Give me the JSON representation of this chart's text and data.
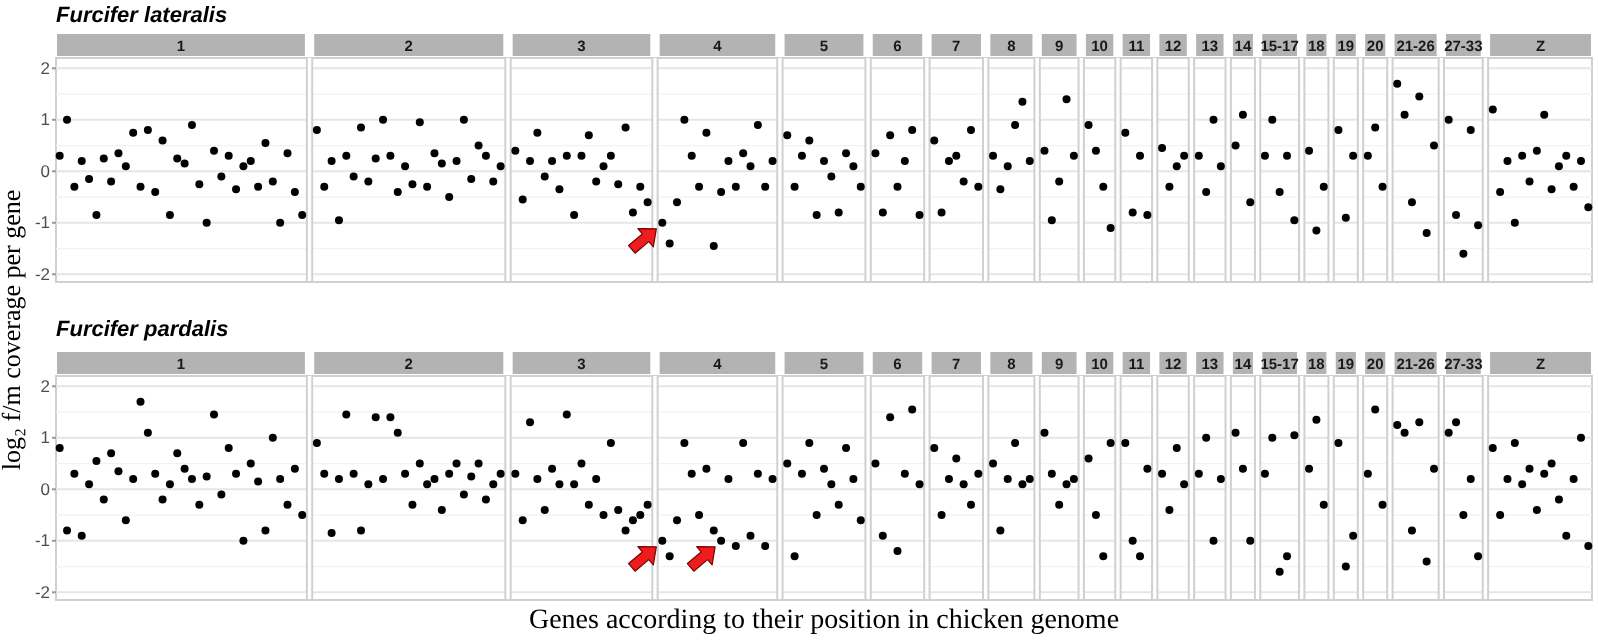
{
  "chart_data": [
    {
      "type": "scatter",
      "title": "Furcifer lateralis",
      "ylabel": "log₂ f/m coverage per gene",
      "ylim": [
        -2.15,
        2.2
      ],
      "yticks": [
        -2,
        -1,
        0,
        1,
        2
      ],
      "tick_labels": "y",
      "grid": "y",
      "marker": "circle",
      "color": "#000000",
      "annotations": [
        "1",
        "2",
        "3",
        "4",
        "5",
        "6",
        "7",
        "8",
        "9",
        "10",
        "11",
        "12",
        "13",
        "14",
        "15-17",
        "18",
        "19",
        "20",
        "21-26",
        "27-33",
        "Z"
      ],
      "categories": [
        null,
        null,
        null,
        null,
        null,
        null,
        null,
        null,
        null,
        null,
        null,
        null,
        null,
        null,
        null,
        null,
        null,
        null,
        null,
        null,
        null,
        null,
        null,
        null,
        null,
        null,
        null,
        null,
        null,
        null,
        null,
        null,
        null,
        null,
        null,
        null,
        null,
        null,
        null,
        null,
        null,
        null,
        null,
        null,
        null,
        null,
        null,
        null,
        null,
        null,
        null,
        null,
        null,
        null,
        null,
        null,
        null,
        null,
        null,
        null,
        null,
        null,
        null,
        null,
        null,
        null,
        null,
        null,
        null,
        null,
        null,
        null,
        null,
        null,
        null,
        null,
        null,
        null,
        null,
        null,
        null,
        null,
        null,
        null,
        null,
        null,
        null,
        null,
        null,
        null,
        null,
        null,
        null,
        null,
        null,
        null,
        null,
        null,
        null,
        null,
        null,
        null,
        null,
        null,
        null,
        null,
        null,
        null,
        null,
        null,
        null,
        null,
        null,
        null,
        null,
        null,
        null,
        null,
        null,
        null,
        null,
        null,
        null,
        null,
        null,
        null,
        null,
        null,
        null,
        null,
        null,
        null,
        null,
        null,
        null,
        null,
        null,
        null,
        null,
        null,
        null,
        null,
        null,
        null,
        null,
        null,
        null,
        null,
        null,
        null,
        null,
        null,
        null,
        null,
        null,
        null,
        null,
        null,
        null,
        null,
        null,
        null,
        null,
        null,
        null,
        null,
        null,
        null,
        null,
        null,
        null,
        null,
        null,
        null,
        null,
        null,
        null,
        null,
        null,
        null,
        null,
        null,
        null,
        null,
        null,
        null,
        null,
        null,
        null,
        null,
        null,
        null,
        null,
        null,
        null,
        null,
        null,
        null,
        null,
        null,
        null,
        null,
        null,
        null,
        null,
        null,
        null,
        null,
        null
      ],
      "values": [
        0.3,
        1.0,
        -0.3,
        0.2,
        -0.15,
        -0.85,
        0.25,
        -0.2,
        0.35,
        0.1,
        0.75,
        -0.3,
        0.8,
        -0.4,
        0.6,
        -0.85,
        0.25,
        0.15,
        0.9,
        -0.25,
        -1.0,
        0.4,
        -0.1,
        0.3,
        -0.35,
        0.1,
        0.2,
        -0.3,
        0.55,
        -0.2,
        -1.0,
        0.35,
        -0.4,
        -0.85,
        null,
        0.8,
        -0.3,
        0.2,
        -0.95,
        0.3,
        -0.1,
        0.85,
        -0.2,
        0.25,
        1.0,
        0.3,
        -0.4,
        0.1,
        -0.25,
        0.95,
        -0.3,
        0.35,
        0.15,
        -0.5,
        0.2,
        1.0,
        -0.15,
        0.5,
        0.3,
        -0.2,
        0.1,
        null,
        0.4,
        -0.55,
        0.2,
        0.75,
        -0.1,
        0.2,
        -0.35,
        0.3,
        -0.85,
        0.3,
        0.7,
        -0.2,
        0.1,
        0.3,
        -0.25,
        0.85,
        -0.8,
        -0.3,
        -0.6,
        null,
        -1.0,
        -1.4,
        -0.6,
        1.0,
        0.3,
        -0.3,
        0.75,
        -1.45,
        -0.4,
        0.2,
        -0.3,
        0.35,
        0.1,
        0.9,
        -0.3,
        0.2,
        null,
        0.7,
        -0.3,
        0.3,
        0.6,
        -0.85,
        0.2,
        -0.1,
        -0.8,
        0.35,
        0.1,
        -0.3,
        null,
        0.35,
        -0.8,
        0.7,
        -0.3,
        0.2,
        0.8,
        -0.85,
        null,
        0.6,
        -0.8,
        0.2,
        0.3,
        -0.2,
        0.8,
        -0.3,
        null,
        0.3,
        -0.35,
        0.1,
        0.9,
        1.35,
        0.2,
        null,
        0.4,
        -0.95,
        -0.2,
        1.4,
        0.3,
        null,
        0.9,
        0.4,
        -0.3,
        -1.1,
        null,
        0.75,
        -0.8,
        0.3,
        -0.85,
        null,
        0.45,
        -0.3,
        0.1,
        0.3,
        null,
        0.3,
        -0.4,
        1.0,
        0.1,
        null,
        0.5,
        1.1,
        -0.6,
        null,
        0.3,
        1.0,
        -0.4,
        0.3,
        -0.95,
        null,
        0.4,
        -1.15,
        -0.3,
        null,
        0.8,
        -0.9,
        0.3,
        null,
        0.3,
        0.85,
        -0.3,
        null,
        1.7,
        1.1,
        -0.6,
        1.45,
        -1.2,
        0.5,
        null,
        1.0,
        -0.85,
        -1.6,
        0.8,
        -1.05,
        null,
        1.2,
        -0.4,
        0.2,
        -1.0,
        0.3,
        -0.2,
        0.4,
        1.1,
        -0.35,
        0.1,
        0.3,
        -0.3,
        0.2,
        -0.7
      ]
    },
    {
      "type": "scatter",
      "title": "Furcifer pardalis",
      "xlabel": "Genes according to their position in chicken genome",
      "ylim": [
        -2.15,
        2.2
      ],
      "yticks": [
        -2,
        -1,
        0,
        1,
        2
      ],
      "tick_labels": "y",
      "grid": "y",
      "marker": "circle",
      "color": "#000000",
      "annotations": [
        "1",
        "2",
        "3",
        "4",
        "5",
        "6",
        "7",
        "8",
        "9",
        "10",
        "11",
        "12",
        "13",
        "14",
        "15-17",
        "18",
        "19",
        "20",
        "21-26",
        "27-33",
        "Z"
      ],
      "categories": [
        null,
        null,
        null,
        null,
        null,
        null,
        null,
        null,
        null,
        null,
        null,
        null,
        null,
        null,
        null,
        null,
        null,
        null,
        null,
        null,
        null,
        null,
        null,
        null,
        null,
        null,
        null,
        null,
        null,
        null,
        null,
        null,
        null,
        null,
        null,
        null,
        null,
        null,
        null,
        null,
        null,
        null,
        null,
        null,
        null,
        null,
        null,
        null,
        null,
        null,
        null,
        null,
        null,
        null,
        null,
        null,
        null,
        null,
        null,
        null,
        null,
        null,
        null,
        null,
        null,
        null,
        null,
        null,
        null,
        null,
        null,
        null,
        null,
        null,
        null,
        null,
        null,
        null,
        null,
        null,
        null,
        null,
        null,
        null,
        null,
        null,
        null,
        null,
        null,
        null,
        null,
        null,
        null,
        null,
        null,
        null,
        null,
        null,
        null,
        null,
        null,
        null,
        null,
        null,
        null,
        null,
        null,
        null,
        null,
        null,
        null,
        null,
        null,
        null,
        null,
        null,
        null,
        null,
        null,
        null,
        null,
        null,
        null,
        null,
        null,
        null,
        null,
        null,
        null,
        null,
        null,
        null,
        null,
        null,
        null,
        null,
        null,
        null,
        null,
        null,
        null,
        null,
        null,
        null,
        null,
        null,
        null,
        null,
        null,
        null,
        null,
        null,
        null,
        null,
        null,
        null,
        null,
        null,
        null,
        null,
        null,
        null,
        null,
        null,
        null,
        null,
        null,
        null,
        null,
        null,
        null,
        null,
        null,
        null,
        null,
        null,
        null,
        null,
        null,
        null,
        null,
        null,
        null,
        null,
        null,
        null,
        null,
        null,
        null,
        null,
        null,
        null,
        null,
        null,
        null,
        null,
        null,
        null,
        null,
        null,
        null,
        null,
        null,
        null,
        null,
        null,
        null,
        null,
        null
      ],
      "values": [
        0.8,
        -0.8,
        0.3,
        -0.9,
        0.1,
        0.55,
        -0.2,
        0.7,
        0.35,
        -0.6,
        0.2,
        1.7,
        1.1,
        0.3,
        -0.2,
        0.1,
        0.7,
        0.4,
        0.2,
        -0.3,
        0.25,
        1.45,
        -0.1,
        0.8,
        0.3,
        -1.0,
        0.5,
        0.15,
        -0.8,
        1.0,
        0.2,
        -0.3,
        0.4,
        -0.5,
        null,
        0.9,
        0.3,
        -0.85,
        0.2,
        1.45,
        0.3,
        -0.8,
        0.1,
        1.4,
        0.2,
        1.4,
        1.1,
        0.3,
        -0.3,
        0.5,
        0.1,
        0.2,
        -0.4,
        0.3,
        0.5,
        -0.1,
        0.25,
        0.5,
        -0.2,
        0.1,
        0.3,
        null,
        0.3,
        -0.6,
        1.3,
        0.2,
        -0.4,
        0.4,
        0.1,
        1.45,
        0.1,
        0.5,
        -0.3,
        0.2,
        -0.5,
        0.9,
        -0.4,
        -0.8,
        -0.6,
        -0.5,
        -0.3,
        null,
        -1.0,
        -1.3,
        -0.6,
        0.9,
        0.3,
        -0.5,
        0.4,
        -0.8,
        -1.0,
        0.2,
        -1.1,
        0.9,
        -0.9,
        0.3,
        -1.1,
        0.2,
        null,
        0.5,
        -1.3,
        0.3,
        0.9,
        -0.5,
        0.4,
        0.1,
        -0.3,
        0.8,
        0.2,
        -0.6,
        null,
        0.5,
        -0.9,
        1.4,
        -1.2,
        0.3,
        1.55,
        0.1,
        null,
        0.8,
        -0.5,
        0.2,
        0.6,
        0.1,
        -0.3,
        0.3,
        null,
        0.5,
        -0.8,
        0.2,
        0.9,
        0.1,
        0.2,
        null,
        1.1,
        0.3,
        -0.3,
        0.1,
        0.2,
        null,
        0.6,
        -0.5,
        -1.3,
        0.9,
        null,
        0.9,
        -1.0,
        -1.3,
        0.4,
        null,
        0.3,
        -0.4,
        0.8,
        0.1,
        null,
        0.3,
        1.0,
        -1.0,
        0.2,
        null,
        1.1,
        0.4,
        -1.0,
        null,
        0.3,
        1.0,
        -1.6,
        -1.3,
        1.05,
        null,
        0.4,
        1.35,
        -0.3,
        null,
        0.9,
        -1.5,
        -0.9,
        null,
        0.3,
        1.55,
        -0.3,
        null,
        1.25,
        1.1,
        -0.8,
        1.3,
        -1.4,
        0.4,
        null,
        1.1,
        1.3,
        -0.5,
        0.2,
        -1.3,
        null,
        0.8,
        -0.5,
        0.2,
        0.9,
        0.1,
        0.4,
        -0.4,
        0.3,
        0.5,
        -0.2,
        -0.9,
        0.2,
        1.0,
        -1.1
      ]
    }
  ]
}
